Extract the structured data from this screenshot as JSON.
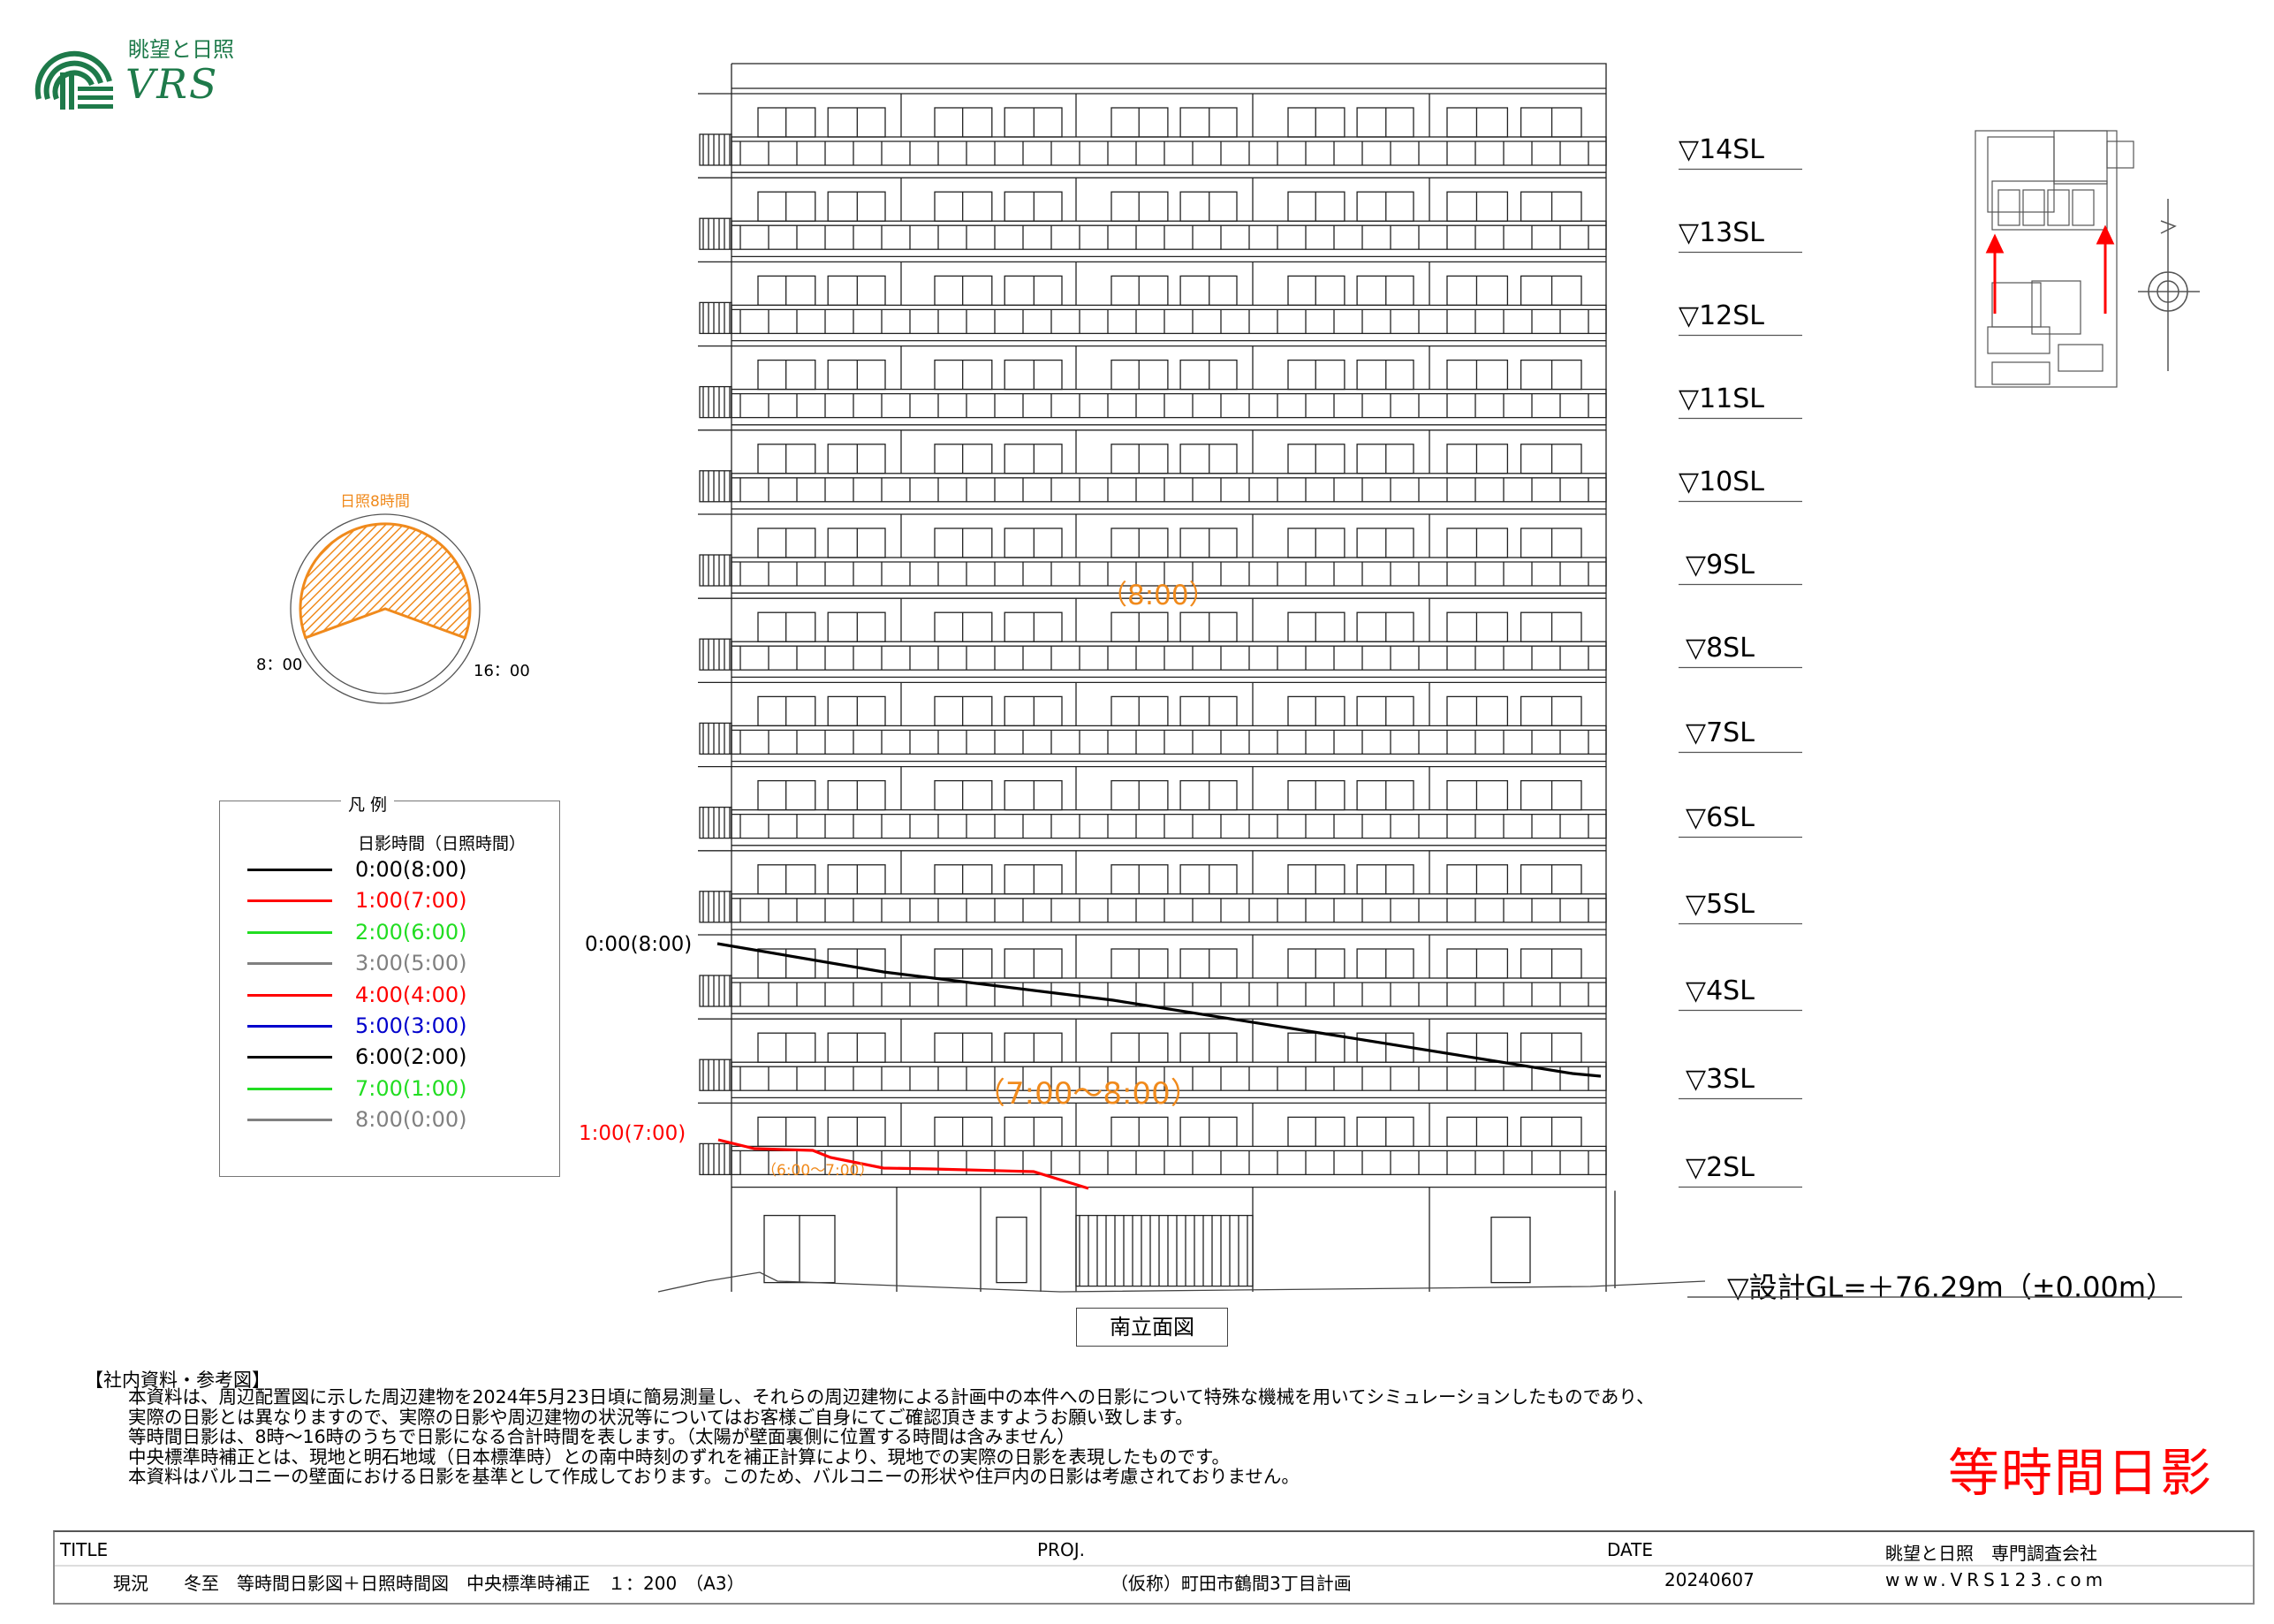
{
  "logo": {
    "brand_jp": "眺望と日照",
    "brand_en": "VRS",
    "icon": "vrs-arch-logo"
  },
  "elevation": {
    "levels": [
      "▽14SL",
      "▽13SL",
      "▽12SL",
      "▽11SL",
      "▽10SL",
      "▽9SL",
      "▽8SL",
      "▽7SL",
      "▽6SL",
      "▽5SL",
      "▽4SL",
      "▽3SL",
      "▽2SL"
    ],
    "gl_label": "▽設計GL=＋76.29m（±0.00m）",
    "view_name": "南立面図",
    "zone_labels": {
      "upper": "（8:00）",
      "middle": "（7:00～8:00）",
      "lower": "（6:00～7:00）"
    },
    "line_labels": {
      "black": "0:00(8:00)",
      "red": "1:00(7:00)"
    }
  },
  "sun_diagram": {
    "title": "日照8時間",
    "start": "8：00",
    "end": "16：00",
    "sunshine_hours": 8,
    "fill_color": "#f08a1c"
  },
  "legend": {
    "title": "凡 例",
    "subtitle": "日影時間（日照時間）",
    "items": [
      {
        "label": "0:00(8:00)",
        "color": "#000000"
      },
      {
        "label": "1:00(7:00)",
        "color": "#ff0000"
      },
      {
        "label": "2:00(6:00)",
        "color": "#22dd22"
      },
      {
        "label": "3:00(5:00)",
        "color": "#808080"
      },
      {
        "label": "4:00(4:00)",
        "color": "#ff0000"
      },
      {
        "label": "5:00(3:00)",
        "color": "#0000cc"
      },
      {
        "label": "6:00(2:00)",
        "color": "#000000"
      },
      {
        "label": "7:00(1:00)",
        "color": "#22dd22"
      },
      {
        "label": "8:00(0:00)",
        "color": "#808080"
      }
    ]
  },
  "notes": {
    "heading": "【社内資料・参考図】",
    "lines": [
      "本資料は、周辺配置図に示した周辺建物を2024年5月23日頃に簡易測量し、それらの周辺建物による計画中の本件への日影について特殊な機械を用いてシミュレーションしたものであり、",
      "実際の日影とは異なりますので、実際の日影や周辺建物の状況等についてはお客様ご自身にてご確認頂きますようお願い致します。",
      "等時間日影は、8時～16時のうちで日影になる合計時間を表します。（太陽が壁面裏側に位置する時間は含みません）",
      "中央標準時補正とは、現地と明石地域（日本標準時）との南中時刻のずれを補正計算により、現地での実際の日影を表現したものです。",
      "本資料はバルコニーの壁面における日影を基準として作成しております。このため、バルコニーの形状や住戸内の日影は考慮されておりません。"
    ]
  },
  "stamp": "等時間日影",
  "title_block": {
    "title_label": "TITLE",
    "title_value": "現況　　冬至　等時間日影図＋日照時間図　中央標準時補正　１：200　（A3）",
    "proj_label": "PROJ.",
    "proj_value": "（仮称）町田市鶴間3丁目計画",
    "date_label": "DATE",
    "date_value": "20240607",
    "company": "眺望と日照　専門調査会社",
    "url": "www.VRS123.com"
  }
}
